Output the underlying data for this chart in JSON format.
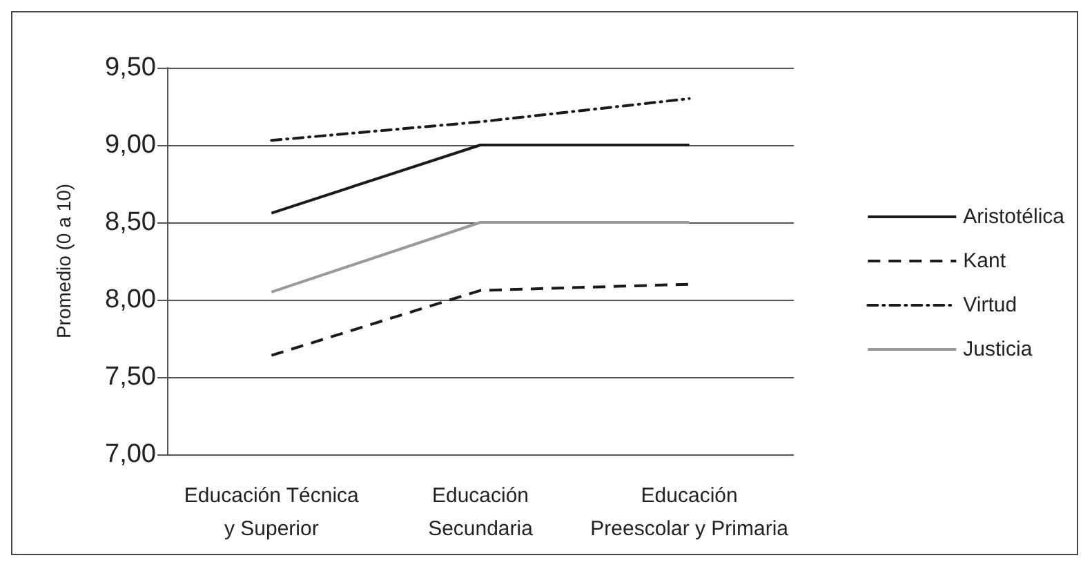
{
  "chart_data": {
    "type": "line",
    "ylabel": "Promedio (0 a 10)",
    "categories": [
      "Educación Técnica\ny Superior",
      "Educación\nSecundaria",
      "Educación\nPreescolar y Primaria"
    ],
    "series": [
      {
        "name": "Aristotélica",
        "color": "#1a1a1a",
        "line_style": "solid",
        "values": [
          8.56,
          9.0,
          9.0
        ]
      },
      {
        "name": "Kant",
        "color": "#1a1a1a",
        "line_style": "dashed",
        "values": [
          7.64,
          8.06,
          8.1
        ]
      },
      {
        "name": "Virtud",
        "color": "#1a1a1a",
        "line_style": "dashdot",
        "values": [
          9.03,
          9.15,
          9.3
        ]
      },
      {
        "name": "Justicia",
        "color": "#999999",
        "line_style": "solid",
        "values": [
          8.05,
          8.5,
          8.5
        ]
      }
    ],
    "ylim": [
      7.0,
      9.5
    ],
    "yticks": [
      {
        "value": 7.0,
        "label": "7,00"
      },
      {
        "value": 7.5,
        "label": "7,50"
      },
      {
        "value": 8.0,
        "label": "8,00"
      },
      {
        "value": 8.5,
        "label": "8,50"
      },
      {
        "value": 9.0,
        "label": "9,00"
      },
      {
        "value": 9.5,
        "label": "9,50"
      }
    ],
    "grid": "y",
    "legend": "right",
    "marker": "none"
  }
}
